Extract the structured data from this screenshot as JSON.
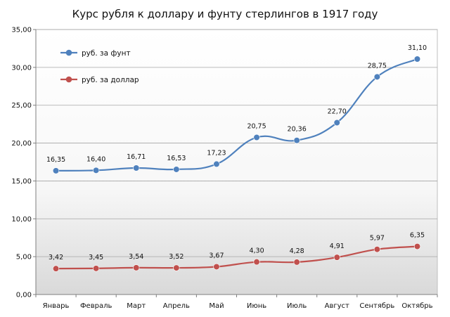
{
  "chart_data": {
    "type": "line",
    "title": "Курс рубля к доллару и фунту стерлингов в 1917 году",
    "xlabel": "",
    "ylabel": "",
    "categories": [
      "Январь",
      "Февраль",
      "Март",
      "Апрель",
      "Май",
      "Июнь",
      "Июль",
      "Август",
      "Сентябрь",
      "Октябрь"
    ],
    "ylim": [
      0,
      35
    ],
    "yticks": [
      "0,00",
      "5,00",
      "10,00",
      "15,00",
      "20,00",
      "25,00",
      "30,00",
      "35,00"
    ],
    "grid": true,
    "legend_position": "top-left",
    "series": [
      {
        "name": "руб. за фунт",
        "color": "#4F81BD",
        "values": [
          16.35,
          16.4,
          16.71,
          16.53,
          17.23,
          20.75,
          20.36,
          22.7,
          28.75,
          31.1
        ],
        "labels": [
          "16,35",
          "16,40",
          "16,71",
          "16,53",
          "17,23",
          "20,75",
          "20,36",
          "22,70",
          "28,75",
          "31,10"
        ]
      },
      {
        "name": "руб. за доллар",
        "color": "#C0504D",
        "values": [
          3.42,
          3.45,
          3.54,
          3.52,
          3.67,
          4.3,
          4.28,
          4.91,
          5.97,
          6.35
        ],
        "labels": [
          "3,42",
          "3,45",
          "3,54",
          "3,52",
          "3,67",
          "4,30",
          "4,28",
          "4,91",
          "5,97",
          "6,35"
        ]
      }
    ]
  }
}
